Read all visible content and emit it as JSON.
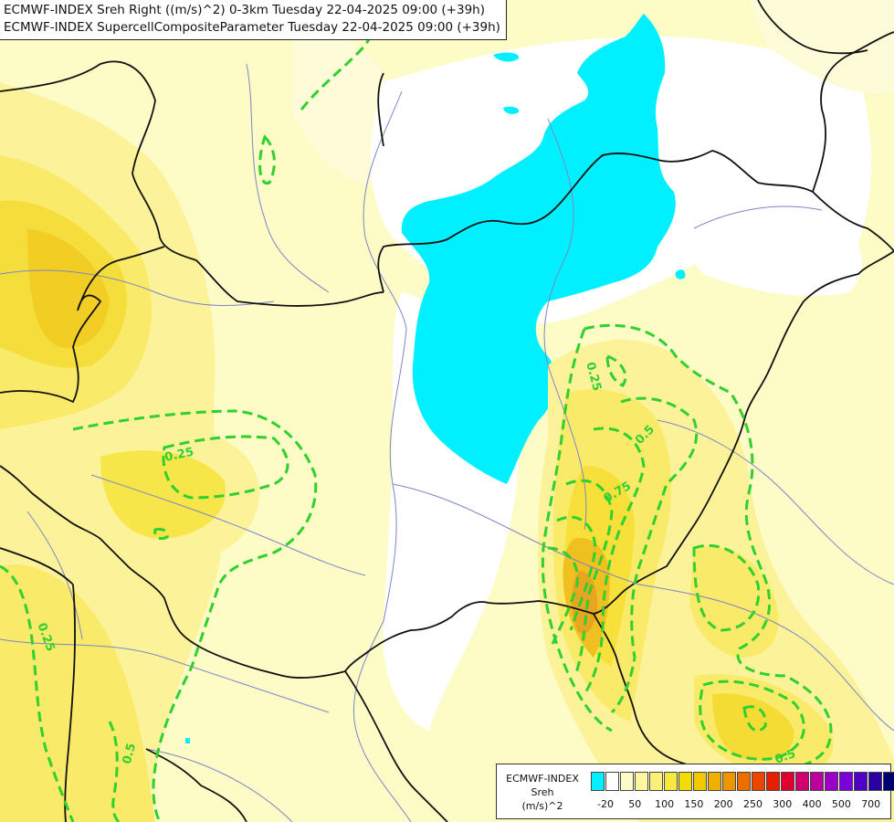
{
  "title": {
    "line1": "ECMWF-INDEX Sreh Right ((m/s)^2) 0-3km Tuesday 22-04-2025 09:00 (+39h)",
    "line2": "ECMWF-INDEX SupercellCompositeParameter Tuesday 22-04-2025 09:00 (+39h)"
  },
  "contour_labels": [
    "0.25",
    "0.25",
    "0.25",
    "0.5",
    "0.75",
    "0.5",
    "0.5"
  ],
  "legend": {
    "line1": "ECMWF-INDEX",
    "line2": "Sreh",
    "line3": "(m/s)^2",
    "ticks": [
      "-20",
      "50",
      "100",
      "150",
      "200",
      "250",
      "300",
      "400",
      "500",
      "700"
    ],
    "colors": [
      "#00f0ff",
      "#ffffff",
      "#fdfbc6",
      "#fcf6a0",
      "#faf078",
      "#f7e83c",
      "#f5dc00",
      "#f2c800",
      "#f0b000",
      "#ee9600",
      "#ec6e00",
      "#ea4600",
      "#e81e00",
      "#e00030",
      "#d0006e",
      "#bc00a0",
      "#9c00c8",
      "#7a00dc",
      "#5000c8",
      "#2a00a0",
      "#000070"
    ]
  },
  "colors": {
    "cyan": "#00f0ff",
    "contour": "#2fd02f",
    "border": "#111111",
    "river": "#7b86c8"
  }
}
